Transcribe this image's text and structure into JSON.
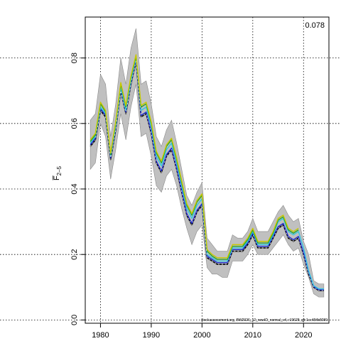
{
  "chart_data": {
    "type": "line",
    "title": "",
    "xlabel": "",
    "ylabel": "F̅ 2-5",
    "ylabel_main": "F̅",
    "ylabel_sub": "2–5",
    "xlim": [
      1977,
      2025
    ],
    "ylim": [
      -0.01,
      0.925
    ],
    "x_ticks": [
      1980,
      1990,
      2000,
      2010,
      2020
    ],
    "y_ticks": [
      0.0,
      0.2,
      0.4,
      0.6,
      0.8
    ],
    "x_tick_labels": [
      "1980",
      "1990",
      "2000",
      "2010",
      "2020"
    ],
    "y_tick_labels": [
      "0.0",
      "0.2",
      "0.4",
      "0.6",
      "0.8"
    ],
    "grid": true,
    "corner_label": "0.078",
    "footer_text": "stockassessment.org, BW2026_12_newID_normal_v4, r19628, git:1cc484b8089",
    "colors": {
      "band": "#c0c0c0",
      "band_edge": "#8a8a8a",
      "grid": "#000000"
    },
    "years": [
      1978,
      1979,
      1980,
      1981,
      1982,
      1983,
      1984,
      1985,
      1986,
      1987,
      1988,
      1989,
      1990,
      1991,
      1992,
      1993,
      1994,
      1995,
      1996,
      1997,
      1998,
      1999,
      2000,
      2001,
      2002,
      2003,
      2004,
      2005,
      2006,
      2007,
      2008,
      2009,
      2010,
      2011,
      2012,
      2013,
      2014,
      2015,
      2016,
      2017,
      2018,
      2019,
      2020,
      2021,
      2022,
      2023,
      2024
    ],
    "band_lower": [
      0.46,
      0.48,
      0.6,
      0.56,
      0.43,
      0.52,
      0.63,
      0.55,
      0.65,
      0.72,
      0.56,
      0.57,
      0.5,
      0.41,
      0.39,
      0.44,
      0.46,
      0.41,
      0.34,
      0.28,
      0.23,
      0.27,
      0.29,
      0.16,
      0.14,
      0.14,
      0.13,
      0.13,
      0.18,
      0.18,
      0.18,
      0.2,
      0.23,
      0.2,
      0.2,
      0.2,
      0.22,
      0.24,
      0.26,
      0.23,
      0.21,
      0.22,
      0.17,
      0.13,
      0.08,
      0.07,
      0.07
    ],
    "band_upper": [
      0.61,
      0.63,
      0.75,
      0.72,
      0.56,
      0.66,
      0.8,
      0.72,
      0.83,
      0.89,
      0.72,
      0.73,
      0.66,
      0.56,
      0.53,
      0.58,
      0.61,
      0.54,
      0.46,
      0.38,
      0.35,
      0.39,
      0.42,
      0.25,
      0.23,
      0.21,
      0.21,
      0.21,
      0.26,
      0.25,
      0.25,
      0.27,
      0.31,
      0.27,
      0.27,
      0.27,
      0.3,
      0.33,
      0.35,
      0.32,
      0.3,
      0.31,
      0.24,
      0.2,
      0.12,
      0.11,
      0.11
    ],
    "series": [
      {
        "color": "#000000",
        "values": [
          0.53,
          0.55,
          0.64,
          0.62,
          0.49,
          0.58,
          0.7,
          0.63,
          0.72,
          0.79,
          0.62,
          0.63,
          0.57,
          0.48,
          0.45,
          0.5,
          0.52,
          0.46,
          0.39,
          0.32,
          0.29,
          0.33,
          0.35,
          0.19,
          0.18,
          0.17,
          0.17,
          0.17,
          0.21,
          0.21,
          0.21,
          0.23,
          0.26,
          0.22,
          0.22,
          0.22,
          0.25,
          0.28,
          0.29,
          0.25,
          0.24,
          0.25,
          0.2,
          0.14,
          0.1,
          0.09,
          0.09
        ]
      },
      {
        "color": "#1f2bd0",
        "values": [
          0.535,
          0.555,
          0.645,
          0.625,
          0.495,
          0.585,
          0.705,
          0.635,
          0.725,
          0.795,
          0.625,
          0.635,
          0.575,
          0.485,
          0.455,
          0.505,
          0.525,
          0.465,
          0.395,
          0.325,
          0.295,
          0.335,
          0.355,
          0.195,
          0.185,
          0.175,
          0.175,
          0.175,
          0.215,
          0.215,
          0.215,
          0.235,
          0.265,
          0.225,
          0.225,
          0.225,
          0.255,
          0.285,
          0.295,
          0.255,
          0.245,
          0.255,
          0.205,
          0.145,
          0.102,
          0.092,
          0.092
        ]
      },
      {
        "color": "#36c6e0",
        "values": [
          0.54,
          0.56,
          0.65,
          0.63,
          0.5,
          0.59,
          0.71,
          0.64,
          0.73,
          0.8,
          0.64,
          0.65,
          0.59,
          0.5,
          0.47,
          0.52,
          0.54,
          0.48,
          0.41,
          0.34,
          0.31,
          0.35,
          0.37,
          0.2,
          0.19,
          0.18,
          0.18,
          0.18,
          0.22,
          0.22,
          0.22,
          0.24,
          0.27,
          0.23,
          0.23,
          0.23,
          0.26,
          0.3,
          0.31,
          0.27,
          0.26,
          0.27,
          0.22,
          0.15,
          0.105,
          0.095,
          0.095
        ]
      },
      {
        "color": "#2ca02c",
        "values": [
          0.545,
          0.565,
          0.66,
          0.635,
          0.505,
          0.6,
          0.72,
          0.65,
          0.74,
          0.805,
          0.65,
          0.66,
          0.6,
          0.51,
          0.48,
          0.53,
          0.55,
          0.49,
          0.42,
          0.35,
          0.32,
          0.36,
          0.38,
          0.21,
          0.195,
          0.185,
          0.185,
          0.185,
          0.225,
          0.225,
          0.225,
          0.245,
          0.275,
          0.235,
          0.235,
          0.235,
          0.265,
          0.305,
          0.315,
          0.275,
          0.265,
          0.275,
          null,
          null,
          null,
          null,
          null
        ]
      },
      {
        "color": "#c8c800",
        "values": [
          0.55,
          0.57,
          0.665,
          0.64,
          0.51,
          0.605,
          0.725,
          0.655,
          0.745,
          0.81,
          0.655,
          0.665,
          0.605,
          0.515,
          0.485,
          0.535,
          0.555,
          0.495,
          0.425,
          0.355,
          0.325,
          0.365,
          0.385,
          0.215,
          0.2,
          0.19,
          0.19,
          0.19,
          0.23,
          0.23,
          0.23,
          0.25,
          0.28,
          0.24,
          0.24,
          0.24,
          0.27,
          0.31,
          0.32,
          0.28,
          0.27,
          0.28,
          null,
          null,
          null,
          null,
          null
        ]
      }
    ]
  }
}
